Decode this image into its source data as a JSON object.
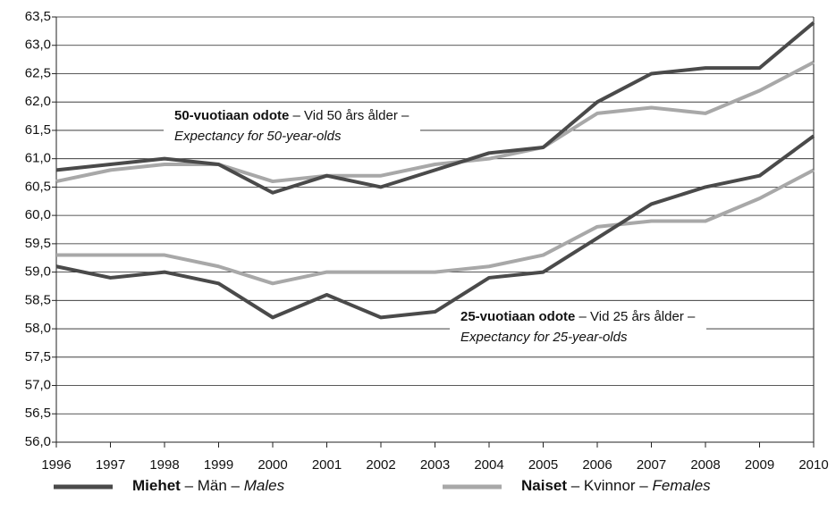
{
  "chart_data": {
    "type": "line",
    "x": [
      1996,
      1997,
      1998,
      1999,
      2000,
      2001,
      2002,
      2003,
      2004,
      2005,
      2006,
      2007,
      2008,
      2009,
      2010
    ],
    "xlim": [
      1996,
      2010
    ],
    "xticks": [
      1996,
      1997,
      1998,
      1999,
      2000,
      2001,
      2002,
      2003,
      2004,
      2005,
      2006,
      2007,
      2008,
      2009,
      2010
    ],
    "ylim": [
      56,
      63.5
    ],
    "yticks": [
      {
        "value": 56,
        "label": "56,0"
      },
      {
        "value": 56.5,
        "label": "56,5"
      },
      {
        "value": 57,
        "label": "57,0"
      },
      {
        "value": 57.5,
        "label": "57,5"
      },
      {
        "value": 58,
        "label": "58,0"
      },
      {
        "value": 58.5,
        "label": "58,5"
      },
      {
        "value": 59,
        "label": "59,0"
      },
      {
        "value": 59.5,
        "label": "59,5"
      },
      {
        "value": 60,
        "label": "60,0"
      },
      {
        "value": 60.5,
        "label": "60,5"
      },
      {
        "value": 61,
        "label": "61,0"
      },
      {
        "value": 61.5,
        "label": "61,5"
      },
      {
        "value": 62,
        "label": "62,0"
      },
      {
        "value": 62.5,
        "label": "62,5"
      },
      {
        "value": 63,
        "label": "63,0"
      },
      {
        "value": 63.5,
        "label": "63,5"
      }
    ],
    "grid": true,
    "legend": [
      {
        "color": "#4a4a4a",
        "parts": [
          {
            "text": "Miehet",
            "style": "bold"
          },
          {
            "text": " – Män – ",
            "style": "normal"
          },
          {
            "text": "Males",
            "style": "italic"
          }
        ]
      },
      {
        "color": "#a8a8a8",
        "parts": [
          {
            "text": "Naiset",
            "style": "bold"
          },
          {
            "text": " – Kvinnor – ",
            "style": "normal"
          },
          {
            "text": "Females",
            "style": "italic"
          }
        ]
      }
    ],
    "series": [
      {
        "legend": 1,
        "values": [
          60.6,
          60.8,
          60.9,
          60.9,
          60.6,
          60.7,
          60.7,
          60.9,
          61.0,
          61.2,
          61.8,
          61.9,
          61.8,
          62.2,
          62.7
        ]
      },
      {
        "legend": 0,
        "values": [
          60.8,
          60.9,
          61.0,
          60.9,
          60.4,
          60.7,
          60.5,
          60.8,
          61.1,
          61.2,
          62.0,
          62.5,
          62.6,
          62.6,
          63.4
        ]
      },
      {
        "legend": 1,
        "values": [
          59.3,
          59.3,
          59.3,
          59.1,
          58.8,
          59.0,
          59.0,
          59.0,
          59.1,
          59.3,
          59.8,
          59.9,
          59.9,
          60.3,
          60.8
        ]
      },
      {
        "legend": 0,
        "values": [
          59.1,
          58.9,
          59.0,
          58.8,
          58.2,
          58.6,
          58.2,
          58.3,
          58.9,
          59.0,
          59.6,
          60.2,
          60.5,
          60.7,
          61.4
        ]
      }
    ],
    "annotations": [
      {
        "lines": [
          [
            {
              "text": "50-vuotiaan odote",
              "style": "bold"
            },
            {
              "text": " – Vid 50 års ålder –",
              "style": "normal"
            }
          ],
          [
            {
              "text": "Expectancy for 50-year-olds",
              "style": "italic"
            }
          ]
        ]
      },
      {
        "lines": [
          [
            {
              "text": "25-vuotiaan odote",
              "style": "bold"
            },
            {
              "text": " – Vid 25 års ålder –",
              "style": "normal"
            }
          ],
          [
            {
              "text": "Expectancy for 25-year-olds",
              "style": "italic"
            }
          ]
        ]
      }
    ]
  }
}
